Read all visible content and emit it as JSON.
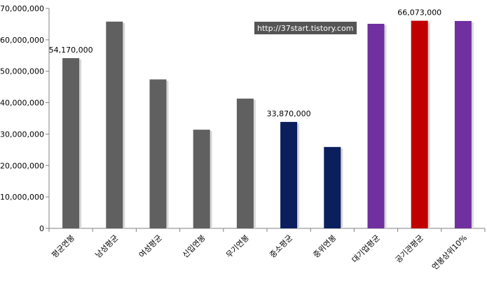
{
  "chart_data": {
    "type": "bar",
    "categories": [
      "평균연봉",
      "남성평균",
      "여성평균",
      "신입연봉",
      "무기연봉",
      "중소평균",
      "중위연봉",
      "대기업평균",
      "공기관평균",
      "연봉상위10%"
    ],
    "values": [
      54170000,
      65800000,
      47400000,
      31400000,
      41300000,
      33870000,
      25900000,
      65100000,
      66073000,
      66000000
    ],
    "colors": [
      "#606060",
      "#606060",
      "#606060",
      "#606060",
      "#606060",
      "#0a1f5c",
      "#0a1f5c",
      "#7030a0",
      "#c00000",
      "#7030a0"
    ],
    "data_labels": [
      {
        "index": 0,
        "text": "54,170,000"
      },
      {
        "index": 5,
        "text": "33,870,000"
      },
      {
        "index": 8,
        "text": "66,073,000"
      }
    ],
    "y_ticks": [
      "0",
      "10,000,000",
      "20,000,000",
      "30,000,000",
      "40,000,000",
      "50,000,000",
      "60,000,000",
      "70,000,000"
    ],
    "ylim": [
      0,
      70000000
    ],
    "grid": false,
    "title": "",
    "xlabel": "",
    "ylabel": ""
  },
  "watermark": "http://37start.tistory.com"
}
